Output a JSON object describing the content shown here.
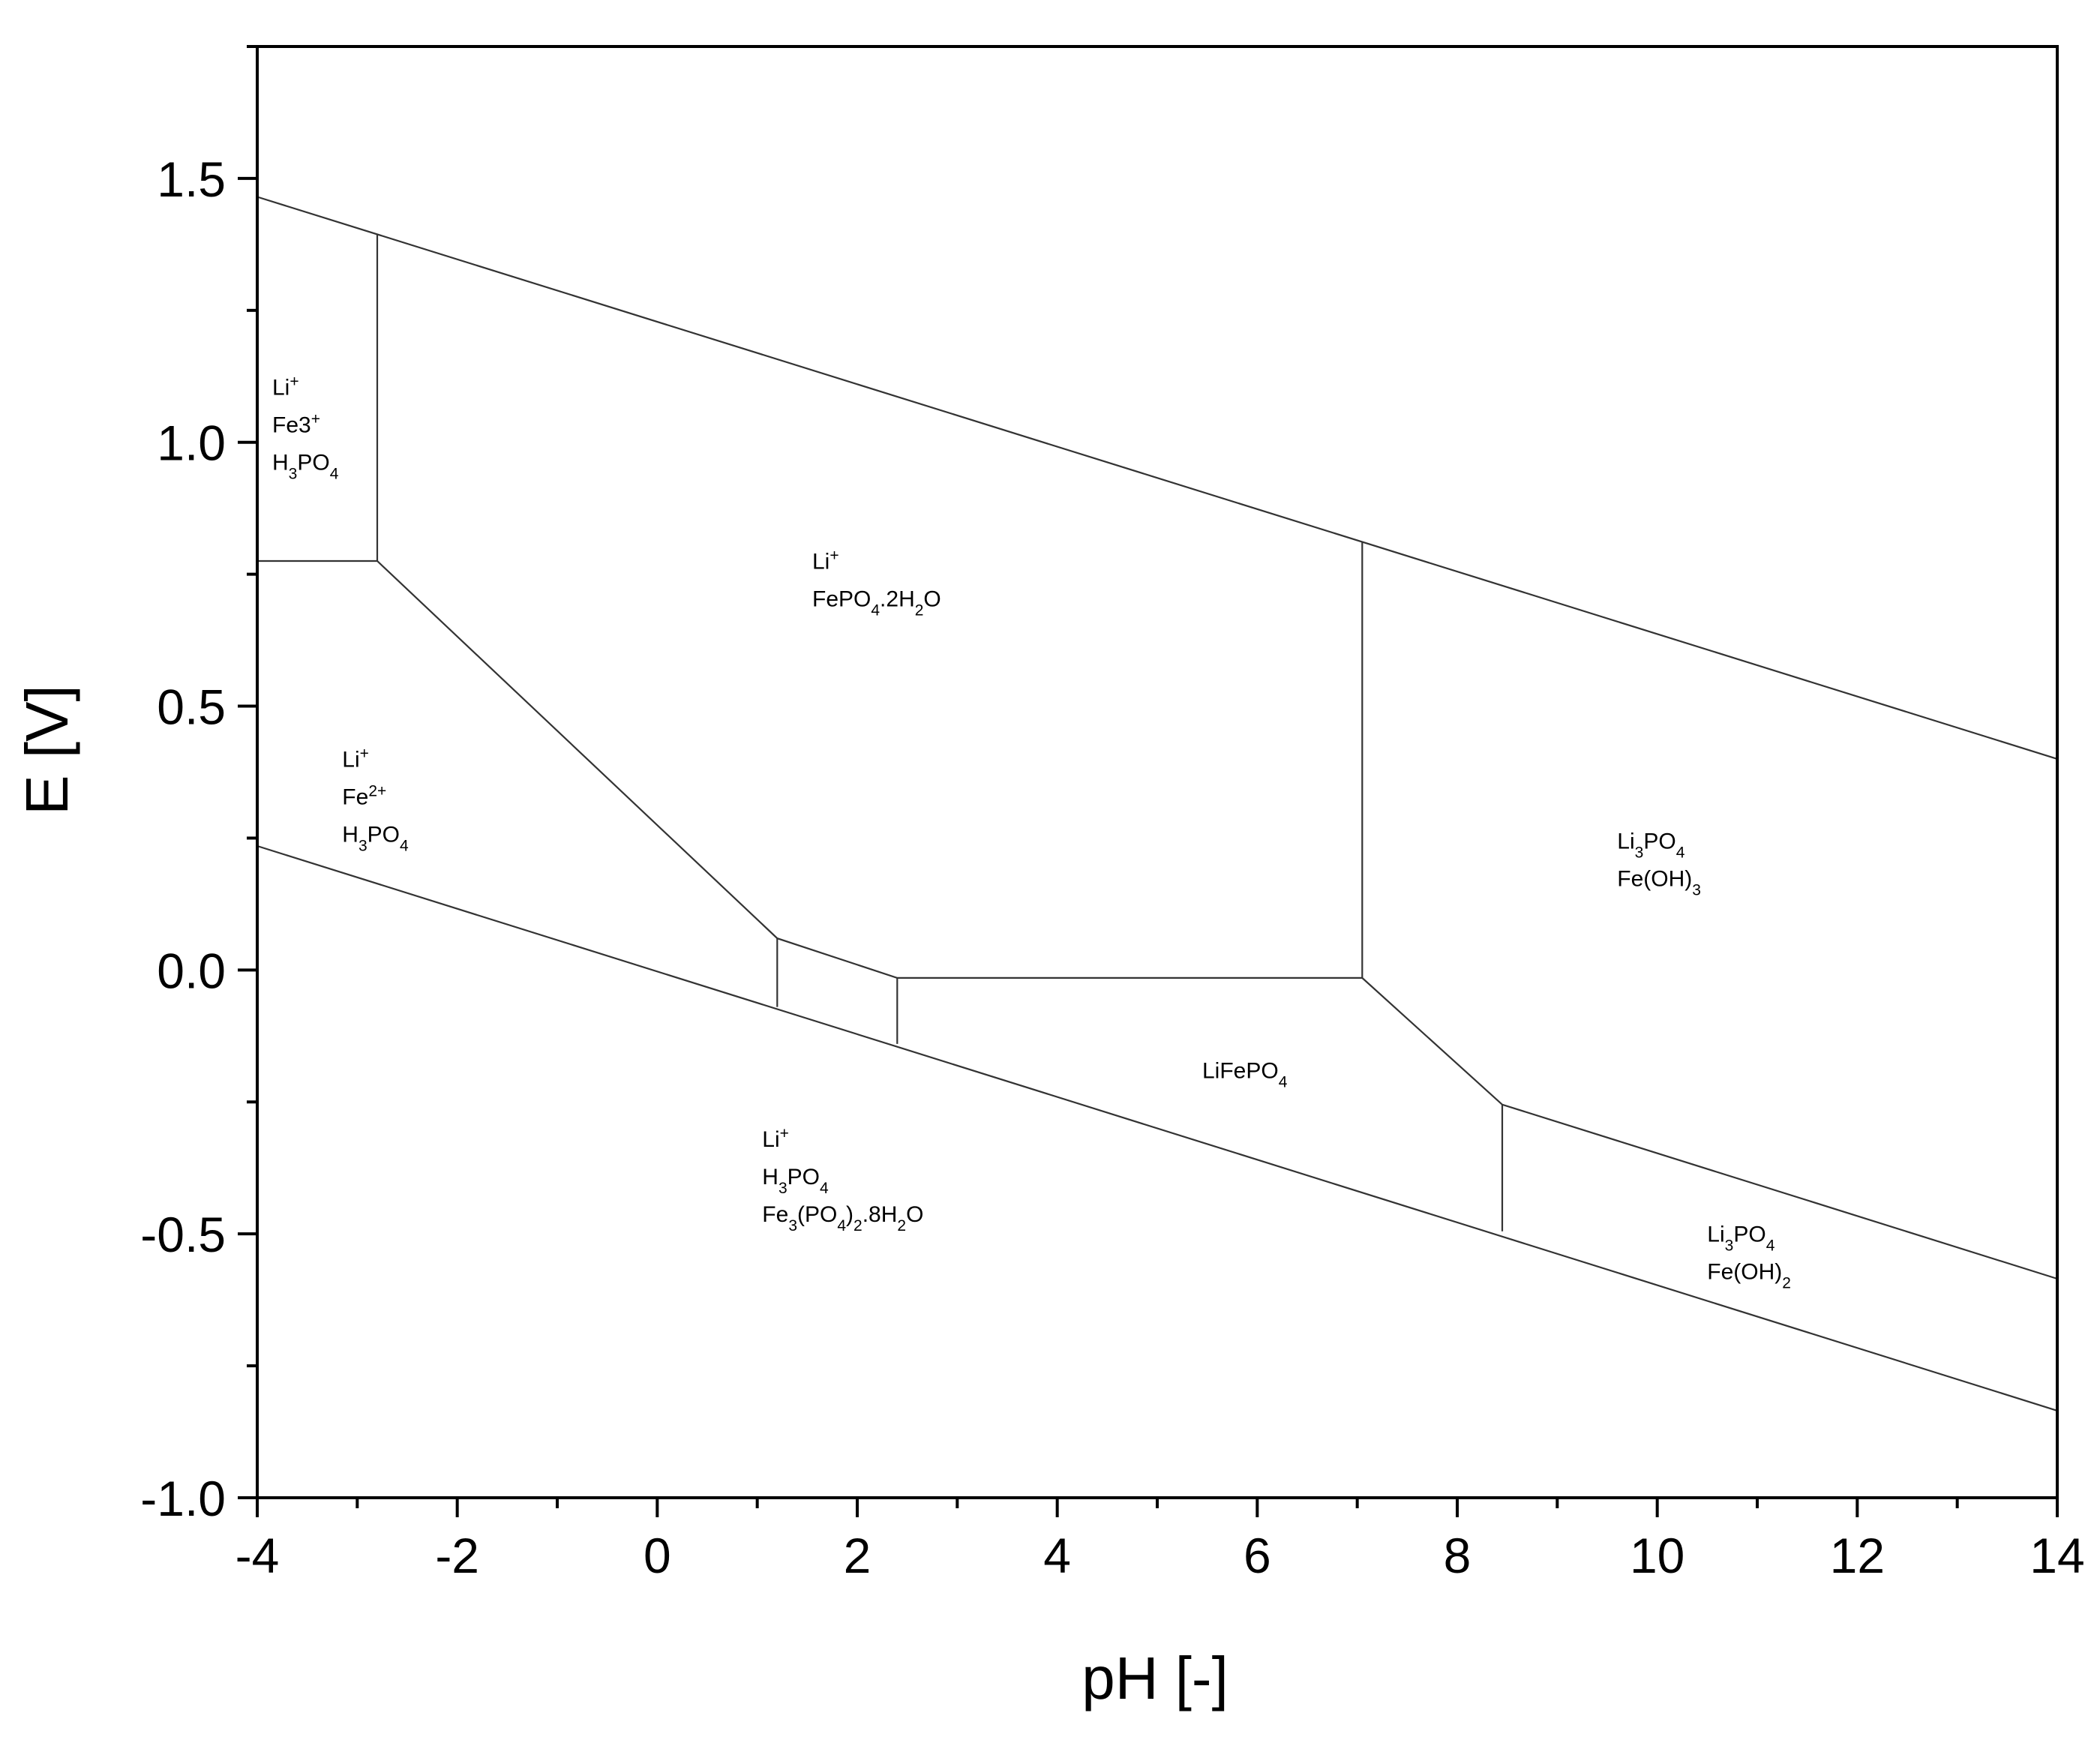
{
  "chart_data": {
    "type": "line",
    "title": "",
    "xlabel": "pH [-]",
    "ylabel": "E [V]",
    "xlim": [
      -4,
      14
    ],
    "ylim": [
      -1.0,
      1.75
    ],
    "x_ticks": [
      -4,
      -2,
      0,
      2,
      4,
      6,
      8,
      10,
      12,
      14
    ],
    "x_tick_labels": [
      "-4",
      "-2",
      "0",
      "2",
      "4",
      "6",
      "8",
      "10",
      "12",
      "14"
    ],
    "y_ticks": [
      -1.0,
      -0.5,
      0.0,
      0.5,
      1.0,
      1.5
    ],
    "y_tick_labels": [
      "-1.0",
      "-0.5",
      "0.0",
      "0.5",
      "1.0",
      "1.5"
    ],
    "grid": false,
    "line_color": "#333333",
    "boundaries": [
      {
        "points": [
          [
            -4,
            1.465
          ],
          [
            14,
            0.4
          ]
        ]
      },
      {
        "points": [
          [
            -4,
            0.235
          ],
          [
            14,
            -0.835
          ]
        ]
      },
      {
        "points": [
          [
            -2.8,
            1.395
          ],
          [
            -2.8,
            0.775
          ]
        ]
      },
      {
        "points": [
          [
            -4,
            0.775
          ],
          [
            -2.8,
            0.775
          ],
          [
            1.2,
            0.06
          ],
          [
            2.4,
            -0.015
          ],
          [
            7.05,
            -0.015
          ],
          [
            8.45,
            -0.255
          ],
          [
            14,
            -0.585
          ]
        ]
      },
      {
        "points": [
          [
            1.2,
            0.06
          ],
          [
            1.2,
            -0.07
          ]
        ]
      },
      {
        "points": [
          [
            2.4,
            -0.015
          ],
          [
            2.4,
            -0.14
          ]
        ]
      },
      {
        "points": [
          [
            7.05,
            0.81
          ],
          [
            7.05,
            -0.015
          ]
        ]
      },
      {
        "points": [
          [
            8.45,
            -0.255
          ],
          [
            8.45,
            -0.495
          ]
        ]
      }
    ],
    "regions": [
      {
        "x": -3.85,
        "y": 1.09,
        "lines": [
          "Li^{+}",
          "Fe3^{+}",
          "H_{3}PO_{4}"
        ]
      },
      {
        "x": 1.55,
        "y": 0.76,
        "lines": [
          "Li^{+}",
          "FePO_{4}.2H_{2}O"
        ]
      },
      {
        "x": -3.15,
        "y": 0.385,
        "lines": [
          "Li^{+}",
          "Fe^{2+}",
          "H_{3}PO_{4}"
        ]
      },
      {
        "x": 9.6,
        "y": 0.23,
        "lines": [
          "Li_{3}PO_{4}",
          "Fe(OH)_{3}"
        ]
      },
      {
        "x": 5.45,
        "y": -0.205,
        "lines": [
          "LiFePO_{4}"
        ]
      },
      {
        "x": 1.05,
        "y": -0.335,
        "lines": [
          "Li^{+}",
          "H_{3}PO_{4}",
          "Fe_{3}(PO_{4})_{2}.8H_{2}O"
        ]
      },
      {
        "x": 10.5,
        "y": -0.515,
        "lines": [
          "Li_{3}PO_{4}",
          "Fe(OH)_{2}"
        ]
      }
    ]
  }
}
